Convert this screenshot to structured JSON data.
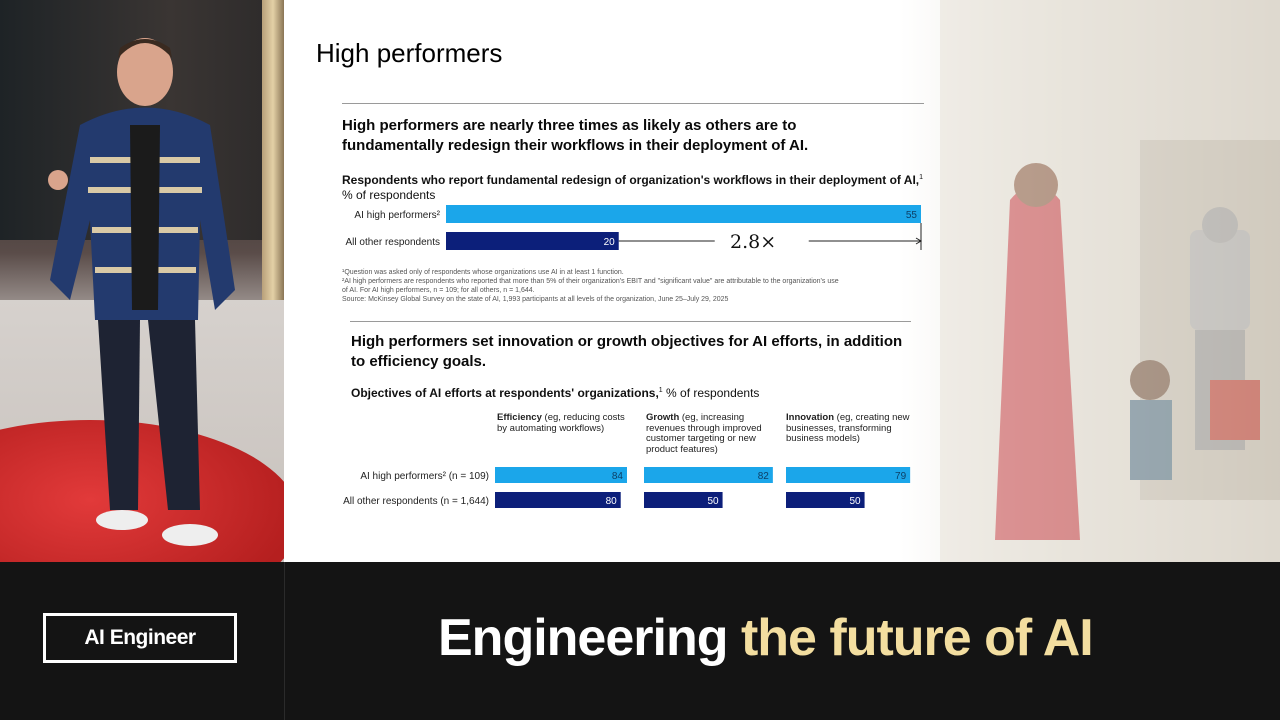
{
  "slide": {
    "title": "High performers",
    "section1": {
      "heading": "High performers are nearly three times as likely as others are to fundamentally redesign their workflows in their deployment of AI.",
      "subtitle_bold": "Respondents who report fundamental redesign of organization's workflows in their deployment of AI,",
      "subtitle_sup": "1",
      "subtitle_rest": "% of respondents",
      "multiplier": "2.8×",
      "footnotes": [
        "¹Question was asked only of respondents whose organizations use AI in at least 1 function.",
        "²AI high performers are respondents who reported that more than 5% of their organization's EBIT and \"significant value\" are attributable to the organization's use",
        "of AI. For AI high performers, n = 109; for all others, n = 1,644.",
        "Source: McKinsey Global Survey on the state of AI, 1,993 participants at all levels of the organization, June 25–July 29, 2025"
      ]
    },
    "section2": {
      "heading": "High performers set innovation or growth objectives for AI efforts, in addition to efficiency goals.",
      "subtitle_bold": "Objectives of AI efforts at respondents' organizations,",
      "subtitle_sup": "1",
      "subtitle_rest": " % of respondents",
      "columns": [
        {
          "name": "Efficiency",
          "desc": " (eg, reducing costs by automating workflows)"
        },
        {
          "name": "Growth",
          "desc": " (eg, increasing revenues through improved customer targeting or new product features)"
        },
        {
          "name": "Innovation",
          "desc": " (eg, creating new businesses, transforming business models)"
        }
      ]
    }
  },
  "chart_data": [
    {
      "type": "bar",
      "title": "Respondents who report fundamental redesign of organization's workflows in their deployment of AI, % of respondents",
      "categories": [
        "AI high performers",
        "All other respondents"
      ],
      "category_labels": [
        "AI high performers²",
        "All other respondents"
      ],
      "values": [
        55,
        20
      ],
      "colors": [
        "#1ba6ea",
        "#0c1f7a"
      ],
      "annotation": "2.8×"
    },
    {
      "type": "bar",
      "title": "Objectives of AI efforts at respondents' organizations, % of respondents",
      "categories": [
        "Efficiency",
        "Growth",
        "Innovation"
      ],
      "row_labels": [
        "AI high performers² (n = 109)",
        "All other respondents (n = 1,644)"
      ],
      "series": [
        {
          "name": "AI high performers (n = 109)",
          "values": [
            84,
            82,
            79
          ],
          "color": "#1ba6ea"
        },
        {
          "name": "All other respondents (n = 1,644)",
          "values": [
            80,
            50,
            50
          ],
          "color": "#0c1f7a"
        }
      ]
    }
  ],
  "branding": {
    "logo_text": "AI Engineer",
    "tagline_white": "Engineering",
    "tagline_yellow": "the future of AI"
  }
}
